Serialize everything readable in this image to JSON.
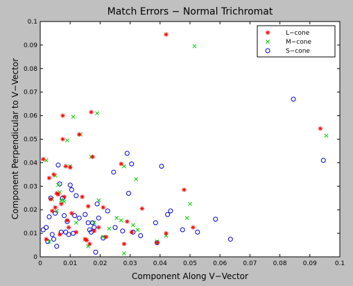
{
  "chart_data": {
    "type": "scatter",
    "title": "Match Errors − Normal Trichromat",
    "xlabel": "Component Along V−Vector",
    "ylabel": "Component Perpendicular to V−Vector",
    "xlim": [
      0,
      0.1
    ],
    "ylim": [
      0,
      0.1
    ],
    "xticks": [
      "0",
      "0.01",
      "0.02",
      "0.03",
      "0.04",
      "0.05",
      "0.06",
      "0.07",
      "0.08",
      "0.09",
      "0.1"
    ],
    "yticks": [
      "0",
      "0.01",
      "0.02",
      "0.03",
      "0.04",
      "0.05",
      "0.06",
      "0.07",
      "0.08",
      "0.09",
      "0.1"
    ],
    "legend_position": "top-right",
    "grid": false,
    "series": [
      {
        "name": "L−cone",
        "marker": "asterisk",
        "color": "#ff0000",
        "points": [
          [
            0.001,
            0.0415
          ],
          [
            0.002,
            0.0075
          ],
          [
            0.003,
            0.0335
          ],
          [
            0.0035,
            0.0245
          ],
          [
            0.004,
            0.0195
          ],
          [
            0.0045,
            0.035
          ],
          [
            0.005,
            0.021
          ],
          [
            0.0055,
            0.027
          ],
          [
            0.006,
            0.0265
          ],
          [
            0.0065,
            0.0095
          ],
          [
            0.007,
            0.0225
          ],
          [
            0.0075,
            0.06
          ],
          [
            0.0075,
            0.05
          ],
          [
            0.008,
            0.0255
          ],
          [
            0.0085,
            0.0385
          ],
          [
            0.009,
            0.0155
          ],
          [
            0.0095,
            0.0125
          ],
          [
            0.01,
            0.038
          ],
          [
            0.0105,
            0.0185
          ],
          [
            0.012,
            0.0105
          ],
          [
            0.013,
            0.052
          ],
          [
            0.014,
            0.0255
          ],
          [
            0.015,
            0.0075
          ],
          [
            0.0155,
            0.007
          ],
          [
            0.016,
            0.0215
          ],
          [
            0.0165,
            0.0055
          ],
          [
            0.017,
            0.0615
          ],
          [
            0.0175,
            0.0425
          ],
          [
            0.018,
            0.011
          ],
          [
            0.0195,
            0.0125
          ],
          [
            0.021,
            0.021
          ],
          [
            0.022,
            0.0085
          ],
          [
            0.027,
            0.0395
          ],
          [
            0.028,
            0.0055
          ],
          [
            0.029,
            0.015
          ],
          [
            0.0305,
            0.0105
          ],
          [
            0.034,
            0.0205
          ],
          [
            0.039,
            0.006
          ],
          [
            0.042,
            0.0945
          ],
          [
            0.042,
            0.01
          ],
          [
            0.048,
            0.0285
          ],
          [
            0.051,
            0.0125
          ],
          [
            0.0935,
            0.0545
          ]
        ]
      },
      {
        "name": "M−cone",
        "marker": "x",
        "color": "#00cc00",
        "points": [
          [
            0.002,
            0.041
          ],
          [
            0.003,
            0.0065
          ],
          [
            0.004,
            0.0245
          ],
          [
            0.005,
            0.0345
          ],
          [
            0.0055,
            0.0195
          ],
          [
            0.006,
            0.0305
          ],
          [
            0.0065,
            0.0275
          ],
          [
            0.007,
            0.024
          ],
          [
            0.008,
            0.0235
          ],
          [
            0.009,
            0.0495
          ],
          [
            0.01,
            0.0385
          ],
          [
            0.011,
            0.0595
          ],
          [
            0.012,
            0.0145
          ],
          [
            0.0135,
            0.052
          ],
          [
            0.015,
            0.0075
          ],
          [
            0.016,
            0.0045
          ],
          [
            0.017,
            0.0425
          ],
          [
            0.018,
            0.0145
          ],
          [
            0.019,
            0.061
          ],
          [
            0.0195,
            0.024
          ],
          [
            0.021,
            0.0085
          ],
          [
            0.023,
            0.012
          ],
          [
            0.0255,
            0.0165
          ],
          [
            0.027,
            0.0155
          ],
          [
            0.028,
            0.0015
          ],
          [
            0.028,
            0.0385
          ],
          [
            0.031,
            0.0135
          ],
          [
            0.032,
            0.033
          ],
          [
            0.0325,
            0.0115
          ],
          [
            0.039,
            0.0065
          ],
          [
            0.042,
            0.009
          ],
          [
            0.049,
            0.0165
          ],
          [
            0.05,
            0.0225
          ],
          [
            0.0515,
            0.0895
          ],
          [
            0.0955,
            0.0515
          ]
        ]
      },
      {
        "name": "S−cone",
        "marker": "circle",
        "color": "#0000cc",
        "points": [
          [
            0.001,
            0.0115
          ],
          [
            0.002,
            0.0125
          ],
          [
            0.0025,
            0.0065
          ],
          [
            0.003,
            0.017
          ],
          [
            0.0035,
            0.025
          ],
          [
            0.004,
            0.0095
          ],
          [
            0.0045,
            0.0075
          ],
          [
            0.005,
            0.0185
          ],
          [
            0.0055,
            0.0045
          ],
          [
            0.006,
            0.039
          ],
          [
            0.0065,
            0.031
          ],
          [
            0.007,
            0.0105
          ],
          [
            0.0075,
            0.025
          ],
          [
            0.008,
            0.0175
          ],
          [
            0.0085,
            0.0105
          ],
          [
            0.009,
            0.015
          ],
          [
            0.0095,
            0.0095
          ],
          [
            0.01,
            0.0305
          ],
          [
            0.0105,
            0.0285
          ],
          [
            0.011,
            0.01
          ],
          [
            0.0115,
            0.0175
          ],
          [
            0.012,
            0.026
          ],
          [
            0.013,
            0.0165
          ],
          [
            0.015,
            0.018
          ],
          [
            0.016,
            0.0145
          ],
          [
            0.0165,
            0.0115
          ],
          [
            0.017,
            0.0105
          ],
          [
            0.0175,
            0.0145
          ],
          [
            0.018,
            0.0125
          ],
          [
            0.0185,
            0.002
          ],
          [
            0.019,
            0.0225
          ],
          [
            0.0195,
            0.0165
          ],
          [
            0.021,
            0.008
          ],
          [
            0.0225,
            0.0195
          ],
          [
            0.0245,
            0.036
          ],
          [
            0.025,
            0.0125
          ],
          [
            0.0275,
            0.011
          ],
          [
            0.029,
            0.044
          ],
          [
            0.0295,
            0.027
          ],
          [
            0.0305,
            0.0395
          ],
          [
            0.031,
            0.0105
          ],
          [
            0.0335,
            0.009
          ],
          [
            0.0385,
            0.0145
          ],
          [
            0.039,
            0.006
          ],
          [
            0.0405,
            0.0385
          ],
          [
            0.0425,
            0.018
          ],
          [
            0.0435,
            0.0195
          ],
          [
            0.0475,
            0.0115
          ],
          [
            0.0525,
            0.0105
          ],
          [
            0.0585,
            0.016
          ],
          [
            0.0635,
            0.0075
          ],
          [
            0.0845,
            0.067
          ],
          [
            0.0945,
            0.041
          ]
        ]
      }
    ]
  }
}
